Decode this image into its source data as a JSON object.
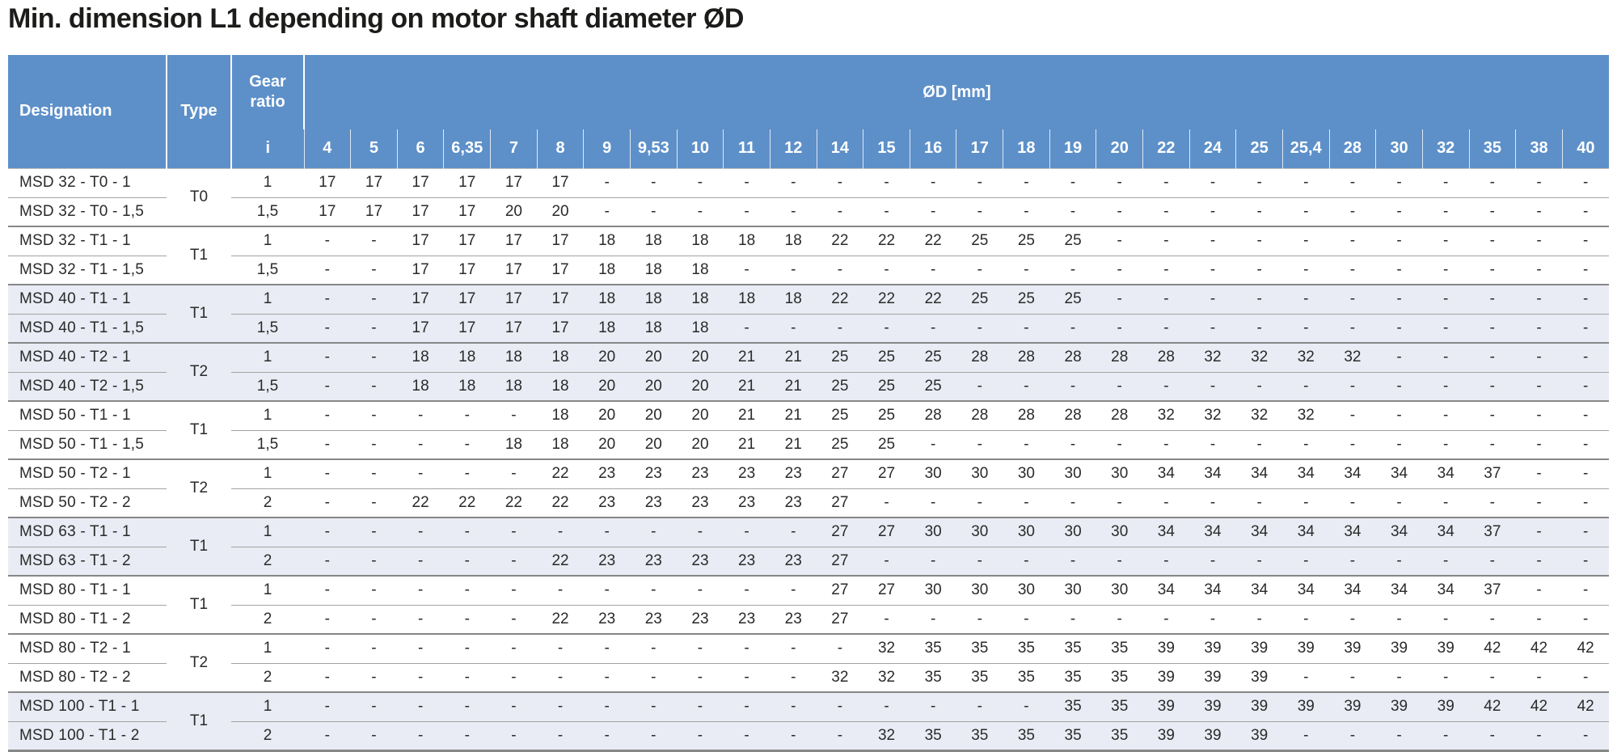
{
  "title": "Min. dimension L1 depending on motor shaft diameter ØD",
  "colors": {
    "header_bg": "#5d90c9",
    "header_text": "#ffffff",
    "row_shade": "#e9ecf4",
    "body_text": "#2a2a2a",
    "title_text": "#1c1c1a",
    "line_light": "#a3a3a3",
    "line_dark": "#878787"
  },
  "table": {
    "headers": {
      "designation": "Designation",
      "type": "Type",
      "gear_ratio": "Gear ratio",
      "gear_ratio_symbol": "i",
      "diameter_group": "ØD [mm]"
    },
    "diameter_columns": [
      "4",
      "5",
      "6",
      "6,35",
      "7",
      "8",
      "9",
      "9,53",
      "10",
      "11",
      "12",
      "14",
      "15",
      "16",
      "17",
      "18",
      "19",
      "20",
      "22",
      "24",
      "25",
      "25,4",
      "28",
      "30",
      "32",
      "35",
      "38",
      "40"
    ],
    "empty_cell": "-",
    "groups": [
      {
        "type": "T0",
        "shaded": false,
        "rows": [
          {
            "designation": "MSD 32 - T0 - 1",
            "ratio": "1",
            "values": [
              "17",
              "17",
              "17",
              "17",
              "17",
              "17",
              "-",
              "-",
              "-",
              "-",
              "-",
              "-",
              "-",
              "-",
              "-",
              "-",
              "-",
              "-",
              "-",
              "-",
              "-",
              "-",
              "-",
              "-",
              "-",
              "-",
              "-",
              "-"
            ]
          },
          {
            "designation": "MSD 32 - T0 - 1,5",
            "ratio": "1,5",
            "values": [
              "17",
              "17",
              "17",
              "17",
              "20",
              "20",
              "-",
              "-",
              "-",
              "-",
              "-",
              "-",
              "-",
              "-",
              "-",
              "-",
              "-",
              "-",
              "-",
              "-",
              "-",
              "-",
              "-",
              "-",
              "-",
              "-",
              "-",
              "-"
            ]
          }
        ]
      },
      {
        "type": "T1",
        "shaded": false,
        "rows": [
          {
            "designation": "MSD 32 - T1 - 1",
            "ratio": "1",
            "values": [
              "-",
              "-",
              "17",
              "17",
              "17",
              "17",
              "18",
              "18",
              "18",
              "18",
              "18",
              "22",
              "22",
              "22",
              "25",
              "25",
              "25",
              "-",
              "-",
              "-",
              "-",
              "-",
              "-",
              "-",
              "-",
              "-",
              "-",
              "-"
            ]
          },
          {
            "designation": "MSD 32 - T1 - 1,5",
            "ratio": "1,5",
            "values": [
              "-",
              "-",
              "17",
              "17",
              "17",
              "17",
              "18",
              "18",
              "18",
              "-",
              "-",
              "-",
              "-",
              "-",
              "-",
              "-",
              "-",
              "-",
              "-",
              "-",
              "-",
              "-",
              "-",
              "-",
              "-",
              "-",
              "-",
              "-"
            ]
          }
        ]
      },
      {
        "type": "T1",
        "shaded": true,
        "rows": [
          {
            "designation": "MSD 40 - T1 - 1",
            "ratio": "1",
            "values": [
              "-",
              "-",
              "17",
              "17",
              "17",
              "17",
              "18",
              "18",
              "18",
              "18",
              "18",
              "22",
              "22",
              "22",
              "25",
              "25",
              "25",
              "-",
              "-",
              "-",
              "-",
              "-",
              "-",
              "-",
              "-",
              "-",
              "-",
              "-"
            ]
          },
          {
            "designation": "MSD 40 - T1 - 1,5",
            "ratio": "1,5",
            "values": [
              "-",
              "-",
              "17",
              "17",
              "17",
              "17",
              "18",
              "18",
              "18",
              "-",
              "-",
              "-",
              "-",
              "-",
              "-",
              "-",
              "-",
              "-",
              "-",
              "-",
              "-",
              "-",
              "-",
              "-",
              "-",
              "-",
              "-",
              "-"
            ]
          }
        ]
      },
      {
        "type": "T2",
        "shaded": true,
        "rows": [
          {
            "designation": "MSD 40 - T2 - 1",
            "ratio": "1",
            "values": [
              "-",
              "-",
              "18",
              "18",
              "18",
              "18",
              "20",
              "20",
              "20",
              "21",
              "21",
              "25",
              "25",
              "25",
              "28",
              "28",
              "28",
              "28",
              "28",
              "32",
              "32",
              "32",
              "32",
              "-",
              "-",
              "-",
              "-",
              "-"
            ]
          },
          {
            "designation": "MSD 40 - T2 - 1,5",
            "ratio": "1,5",
            "values": [
              "-",
              "-",
              "18",
              "18",
              "18",
              "18",
              "20",
              "20",
              "20",
              "21",
              "21",
              "25",
              "25",
              "25",
              "-",
              "-",
              "-",
              "-",
              "-",
              "-",
              "-",
              "-",
              "-",
              "-",
              "-",
              "-",
              "-",
              "-"
            ]
          }
        ]
      },
      {
        "type": "T1",
        "shaded": false,
        "rows": [
          {
            "designation": "MSD 50 - T1 - 1",
            "ratio": "1",
            "values": [
              "-",
              "-",
              "-",
              "-",
              "-",
              "18",
              "20",
              "20",
              "20",
              "21",
              "21",
              "25",
              "25",
              "28",
              "28",
              "28",
              "28",
              "28",
              "32",
              "32",
              "32",
              "32",
              "-",
              "-",
              "-",
              "-",
              "-",
              "-"
            ]
          },
          {
            "designation": "MSD 50 - T1 - 1,5",
            "ratio": "1,5",
            "values": [
              "-",
              "-",
              "-",
              "-",
              "18",
              "18",
              "20",
              "20",
              "20",
              "21",
              "21",
              "25",
              "25",
              "-",
              "-",
              "-",
              "-",
              "-",
              "-",
              "-",
              "-",
              "-",
              "-",
              "-",
              "-",
              "-",
              "-",
              "-"
            ]
          }
        ]
      },
      {
        "type": "T2",
        "shaded": false,
        "rows": [
          {
            "designation": "MSD 50 - T2 - 1",
            "ratio": "1",
            "values": [
              "-",
              "-",
              "-",
              "-",
              "-",
              "22",
              "23",
              "23",
              "23",
              "23",
              "23",
              "27",
              "27",
              "30",
              "30",
              "30",
              "30",
              "30",
              "34",
              "34",
              "34",
              "34",
              "34",
              "34",
              "34",
              "37",
              "-",
              "-"
            ]
          },
          {
            "designation": "MSD 50 - T2 - 2",
            "ratio": "2",
            "values": [
              "-",
              "-",
              "22",
              "22",
              "22",
              "22",
              "23",
              "23",
              "23",
              "23",
              "23",
              "27",
              "-",
              "-",
              "-",
              "-",
              "-",
              "-",
              "-",
              "-",
              "-",
              "-",
              "-",
              "-",
              "-",
              "-",
              "-",
              "-"
            ]
          }
        ]
      },
      {
        "type": "T1",
        "shaded": true,
        "rows": [
          {
            "designation": "MSD 63 - T1 - 1",
            "ratio": "1",
            "values": [
              "-",
              "-",
              "-",
              "-",
              "-",
              "-",
              "-",
              "-",
              "-",
              "-",
              "-",
              "27",
              "27",
              "30",
              "30",
              "30",
              "30",
              "30",
              "34",
              "34",
              "34",
              "34",
              "34",
              "34",
              "34",
              "37",
              "-",
              "-"
            ]
          },
          {
            "designation": "MSD 63 - T1 - 2",
            "ratio": "2",
            "values": [
              "-",
              "-",
              "-",
              "-",
              "-",
              "22",
              "23",
              "23",
              "23",
              "23",
              "23",
              "27",
              "-",
              "-",
              "-",
              "-",
              "-",
              "-",
              "-",
              "-",
              "-",
              "-",
              "-",
              "-",
              "-",
              "-",
              "-",
              "-"
            ]
          }
        ]
      },
      {
        "type": "T1",
        "shaded": false,
        "rows": [
          {
            "designation": "MSD 80 - T1 - 1",
            "ratio": "1",
            "values": [
              "-",
              "-",
              "-",
              "-",
              "-",
              "-",
              "-",
              "-",
              "-",
              "-",
              "-",
              "27",
              "27",
              "30",
              "30",
              "30",
              "30",
              "30",
              "34",
              "34",
              "34",
              "34",
              "34",
              "34",
              "34",
              "37",
              "-",
              "-"
            ]
          },
          {
            "designation": "MSD 80 - T1 - 2",
            "ratio": "2",
            "values": [
              "-",
              "-",
              "-",
              "-",
              "-",
              "22",
              "23",
              "23",
              "23",
              "23",
              "23",
              "27",
              "-",
              "-",
              "-",
              "-",
              "-",
              "-",
              "-",
              "-",
              "-",
              "-",
              "-",
              "-",
              "-",
              "-",
              "-",
              "-"
            ]
          }
        ]
      },
      {
        "type": "T2",
        "shaded": false,
        "rows": [
          {
            "designation": "MSD 80 - T2 - 1",
            "ratio": "1",
            "values": [
              "-",
              "-",
              "-",
              "-",
              "-",
              "-",
              "-",
              "-",
              "-",
              "-",
              "-",
              "-",
              "32",
              "35",
              "35",
              "35",
              "35",
              "35",
              "39",
              "39",
              "39",
              "39",
              "39",
              "39",
              "39",
              "42",
              "42",
              "42"
            ]
          },
          {
            "designation": "MSD 80 - T2 - 2",
            "ratio": "2",
            "values": [
              "-",
              "-",
              "-",
              "-",
              "-",
              "-",
              "-",
              "-",
              "-",
              "-",
              "-",
              "32",
              "32",
              "35",
              "35",
              "35",
              "35",
              "35",
              "39",
              "39",
              "39",
              "-",
              "-",
              "-",
              "-",
              "-",
              "-",
              "-"
            ]
          }
        ]
      },
      {
        "type": "T1",
        "shaded": true,
        "rows": [
          {
            "designation": "MSD 100 - T1 - 1",
            "ratio": "1",
            "values": [
              "-",
              "-",
              "-",
              "-",
              "-",
              "-",
              "-",
              "-",
              "-",
              "-",
              "-",
              "-",
              "-",
              "-",
              "-",
              "-",
              "35",
              "35",
              "39",
              "39",
              "39",
              "39",
              "39",
              "39",
              "39",
              "42",
              "42",
              "42"
            ]
          },
          {
            "designation": "MSD 100 - T1 - 2",
            "ratio": "2",
            "values": [
              "-",
              "-",
              "-",
              "-",
              "-",
              "-",
              "-",
              "-",
              "-",
              "-",
              "-",
              "-",
              "32",
              "35",
              "35",
              "35",
              "35",
              "35",
              "39",
              "39",
              "39",
              "-",
              "-",
              "-",
              "-",
              "-",
              "-",
              "-"
            ]
          }
        ]
      }
    ]
  }
}
